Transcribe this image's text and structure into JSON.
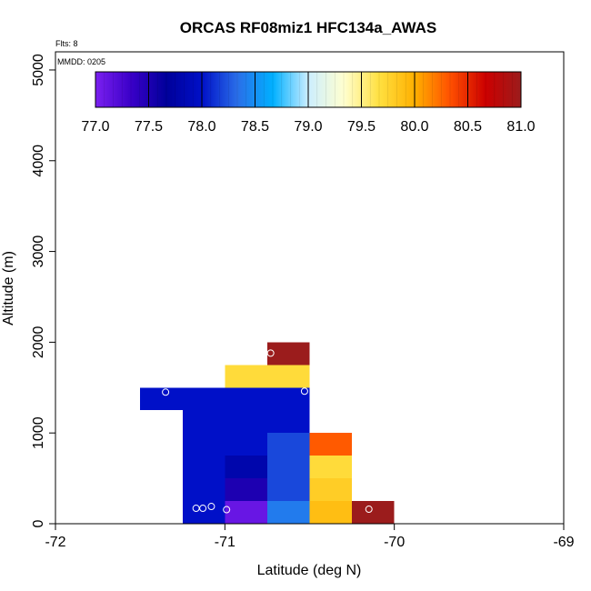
{
  "chart_data": {
    "type": "heatmap",
    "title": "ORCAS RF08miz1 HFC134a_AWAS",
    "flights_label": "Flts: 8",
    "date_label": "MMDD: 0205",
    "xlabel": "Latitude (deg N)",
    "ylabel": "Altitude (m)",
    "xlim": [
      -72,
      -69
    ],
    "ylim": [
      0,
      5200
    ],
    "xticks": [
      -72,
      -71,
      -70,
      -69
    ],
    "yticks": [
      0,
      1000,
      2000,
      3000,
      4000,
      5000
    ],
    "colorbar": {
      "min": 77.0,
      "max": 81.0,
      "ticks": [
        "77.0",
        "77.5",
        "78.0",
        "78.5",
        "79.0",
        "79.5",
        "80.0",
        "80.5",
        "81.0"
      ],
      "colors": [
        "#7b20f0",
        "#3a00c8",
        "#00009a",
        "#0010c8",
        "#2a6ee8",
        "#00b0ff",
        "#cceeff",
        "#ffffd0",
        "#ffe040",
        "#ffb000",
        "#ff5000",
        "#cc0000",
        "#9b1c1c"
      ]
    },
    "cells": [
      {
        "lat0": -71.5,
        "lat1": -71.25,
        "alt0": 1250,
        "alt1": 1500,
        "value": 78.0
      },
      {
        "lat0": -71.25,
        "lat1": -71.0,
        "alt0": 1250,
        "alt1": 1500,
        "value": 78.0
      },
      {
        "lat0": -71.0,
        "lat1": -70.75,
        "alt0": 1250,
        "alt1": 1500,
        "value": 78.0
      },
      {
        "lat0": -70.75,
        "lat1": -70.5,
        "alt0": 1250,
        "alt1": 1500,
        "value": 78.0
      },
      {
        "lat0": -71.25,
        "lat1": -71.0,
        "alt0": 250,
        "alt1": 1250,
        "value": 78.0
      },
      {
        "lat0": -71.25,
        "lat1": -71.0,
        "alt0": 0,
        "alt1": 250,
        "value": 78.0
      },
      {
        "lat0": -71.0,
        "lat1": -70.75,
        "alt0": 750,
        "alt1": 1250,
        "value": 78.0
      },
      {
        "lat0": -71.0,
        "lat1": -70.75,
        "alt0": 500,
        "alt1": 750,
        "value": 77.8
      },
      {
        "lat0": -71.0,
        "lat1": -70.75,
        "alt0": 250,
        "alt1": 500,
        "value": 77.5
      },
      {
        "lat0": -71.0,
        "lat1": -70.75,
        "alt0": 0,
        "alt1": 250,
        "value": 77.1
      },
      {
        "lat0": -70.75,
        "lat1": -70.5,
        "alt0": 1000,
        "alt1": 1250,
        "value": 78.0
      },
      {
        "lat0": -70.75,
        "lat1": -70.5,
        "alt0": 250,
        "alt1": 1000,
        "value": 78.2
      },
      {
        "lat0": -70.75,
        "lat1": -70.5,
        "alt0": 0,
        "alt1": 250,
        "value": 78.4
      },
      {
        "lat0": -71.0,
        "lat1": -70.75,
        "alt0": 1500,
        "alt1": 1750,
        "value": 79.7
      },
      {
        "lat0": -70.75,
        "lat1": -70.5,
        "alt0": 1500,
        "alt1": 1750,
        "value": 79.7
      },
      {
        "lat0": -70.75,
        "lat1": -70.5,
        "alt0": 1750,
        "alt1": 2000,
        "value": 81.0
      },
      {
        "lat0": -70.5,
        "lat1": -70.25,
        "alt0": 750,
        "alt1": 1000,
        "value": 80.3
      },
      {
        "lat0": -70.5,
        "lat1": -70.25,
        "alt0": 500,
        "alt1": 750,
        "value": 79.7
      },
      {
        "lat0": -70.5,
        "lat1": -70.25,
        "alt0": 250,
        "alt1": 500,
        "value": 79.8
      },
      {
        "lat0": -70.5,
        "lat1": -70.25,
        "alt0": 0,
        "alt1": 250,
        "value": 79.9
      },
      {
        "lat0": -70.25,
        "lat1": -70.0,
        "alt0": 0,
        "alt1": 250,
        "value": 81.0
      }
    ],
    "points": [
      {
        "lat": -71.35,
        "alt": 1450
      },
      {
        "lat": -70.53,
        "alt": 1460
      },
      {
        "lat": -70.73,
        "alt": 1880
      },
      {
        "lat": -71.17,
        "alt": 170
      },
      {
        "lat": -71.13,
        "alt": 170
      },
      {
        "lat": -71.08,
        "alt": 190
      },
      {
        "lat": -70.99,
        "alt": 155
      },
      {
        "lat": -70.15,
        "alt": 160
      }
    ]
  }
}
